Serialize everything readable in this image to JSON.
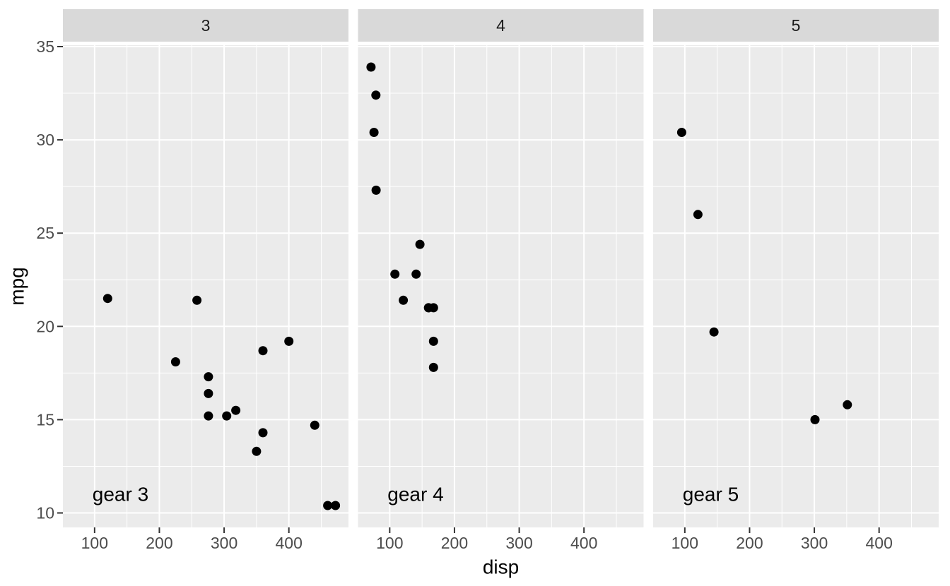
{
  "figure": {
    "background": "#FFFFFF"
  },
  "chart_data": {
    "type": "scatter",
    "title": "",
    "xlabel": "disp",
    "ylabel": "mpg",
    "faceted_by": "gear",
    "legend": "none",
    "grid": "on",
    "xlim": [
      51.055,
      492.045
    ],
    "ylim": [
      9.225,
      35.075
    ],
    "x_major_ticks": [
      100,
      200,
      300,
      400
    ],
    "x_minor_ticks": [
      150,
      250,
      350,
      450
    ],
    "y_major_ticks": [
      10,
      15,
      20,
      25,
      30,
      35
    ],
    "y_minor_ticks": [
      12.5,
      17.5,
      22.5,
      27.5,
      32.5
    ],
    "facets": [
      {
        "strip_label": "3",
        "annotation": {
          "label": "gear 3",
          "x": 140,
          "y": 11
        },
        "points": [
          [
            120.1,
            21.5
          ],
          [
            258,
            21.4
          ],
          [
            225,
            18.1
          ],
          [
            275.8,
            17.3
          ],
          [
            275.8,
            16.4
          ],
          [
            275.8,
            15.2
          ],
          [
            304,
            15.2
          ],
          [
            318,
            15.5
          ],
          [
            350,
            13.3
          ],
          [
            360,
            14.3
          ],
          [
            360,
            18.7
          ],
          [
            400,
            19.2
          ],
          [
            440,
            14.7
          ],
          [
            460,
            10.4
          ],
          [
            472,
            10.4
          ]
        ]
      },
      {
        "strip_label": "4",
        "annotation": {
          "label": "gear 4",
          "x": 140,
          "y": 11
        },
        "points": [
          [
            71.1,
            33.9
          ],
          [
            78.7,
            32.4
          ],
          [
            75.7,
            30.4
          ],
          [
            79,
            27.3
          ],
          [
            146.7,
            24.4
          ],
          [
            108,
            22.8
          ],
          [
            140.8,
            22.8
          ],
          [
            121,
            21.4
          ],
          [
            160,
            21.0
          ],
          [
            160,
            21.0
          ],
          [
            167.6,
            21.0
          ],
          [
            167.6,
            19.2
          ],
          [
            167.6,
            17.8
          ]
        ]
      },
      {
        "strip_label": "5",
        "annotation": {
          "label": "gear 5",
          "x": 140,
          "y": 11
        },
        "points": [
          [
            95.1,
            30.4
          ],
          [
            120.3,
            26.0
          ],
          [
            145,
            19.7
          ],
          [
            301,
            15.0
          ],
          [
            351,
            15.8
          ]
        ]
      }
    ],
    "style": {
      "panel_bg": "#EBEBEB",
      "strip_bg": "#D9D9D9",
      "grid_color": "#FFFFFF",
      "point_color": "#000000",
      "tick_color": "#333333",
      "tick_label_color": "#4D4D4D",
      "strip_text_color": "#1A1A1A",
      "axis_title_color": "#000000",
      "annotation_color": "#000000"
    }
  }
}
